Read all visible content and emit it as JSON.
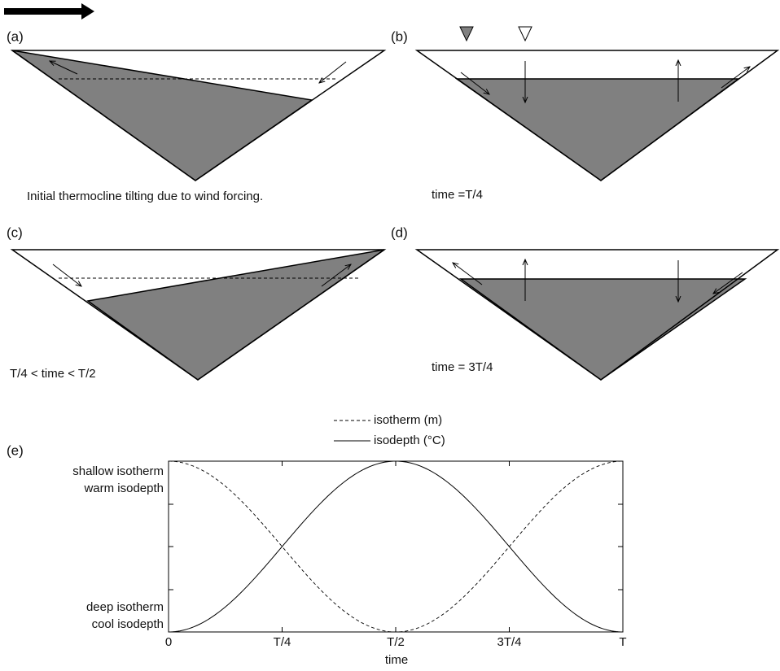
{
  "panels": [
    {
      "label": "(a)",
      "caption": "Initial thermocline tilting due to wind forcing."
    },
    {
      "label": "(b)",
      "caption": "time =T/4"
    },
    {
      "label": "(c)",
      "caption": "T/4 < time < T/2"
    },
    {
      "label": "(d)",
      "caption": "time = 3T/4"
    }
  ],
  "plot": {
    "label": "(e)",
    "legend": [
      "isotherm (m)",
      "isodepth (°C)"
    ],
    "y_labels": {
      "top": [
        "shallow isotherm",
        "warm isodepth"
      ],
      "bottom": [
        "deep isotherm",
        "cool isodepth"
      ]
    },
    "x_ticks": [
      "0",
      "T/4",
      "T/2",
      "3T/4",
      "T"
    ],
    "x_label": "time"
  }
}
